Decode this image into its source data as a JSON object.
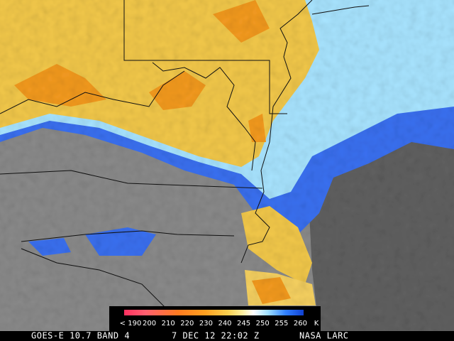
{
  "legend": {
    "labels": [
      "< 190",
      "200",
      "210",
      "220",
      "230",
      "240",
      "245",
      "250",
      "255",
      "260"
    ],
    "unit": "K"
  },
  "footer": {
    "satellite": "GOES-E 10.7 BAND 4",
    "time": "7 DEC 12 22:02 Z",
    "credit": "NASA LARC"
  }
}
